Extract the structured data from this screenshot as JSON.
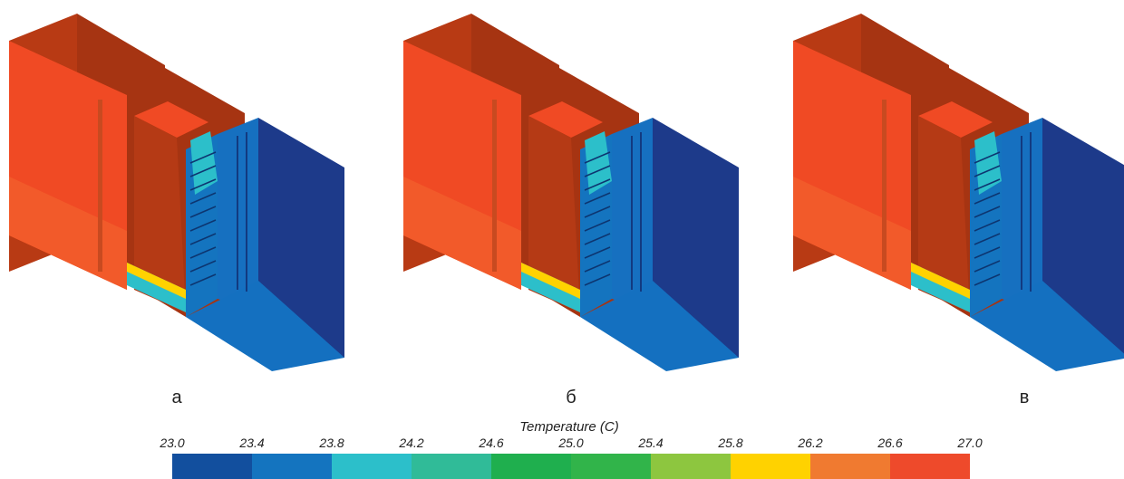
{
  "panels": [
    {
      "label": "а"
    },
    {
      "label": "б"
    },
    {
      "label": "в"
    }
  ],
  "colorbar": {
    "title": "Temperature (C)",
    "ticks": [
      {
        "value": 23.0,
        "label": "23.0"
      },
      {
        "value": 23.4,
        "label": "23.4"
      },
      {
        "value": 23.8,
        "label": "23.8"
      },
      {
        "value": 24.2,
        "label": "24.2"
      },
      {
        "value": 24.6,
        "label": "24.6"
      },
      {
        "value": 25.0,
        "label": "25.0"
      },
      {
        "value": 25.4,
        "label": "25.4"
      },
      {
        "value": 25.8,
        "label": "25.8"
      },
      {
        "value": 26.2,
        "label": "26.2"
      },
      {
        "value": 26.6,
        "label": "26.6"
      },
      {
        "value": 27.0,
        "label": "27.0"
      }
    ],
    "colors": [
      "#124f9e",
      "#1474bf",
      "#2cbfca",
      "#30bb98",
      "#1faf4e",
      "#31b44a",
      "#8dc63f",
      "#ffd200",
      "#f07a30",
      "#ee4a2b"
    ]
  }
}
